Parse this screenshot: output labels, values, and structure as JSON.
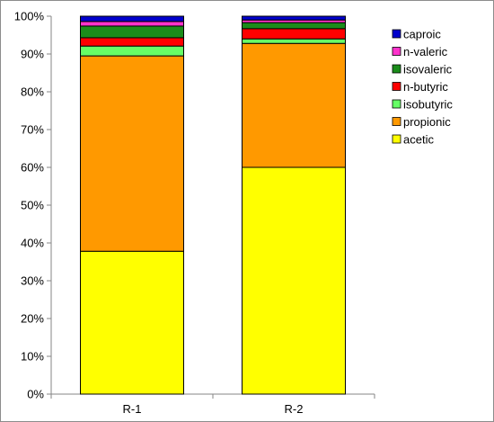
{
  "chart_data": {
    "type": "bar",
    "stacked": true,
    "percent": true,
    "categories": [
      "R-1",
      "R-2"
    ],
    "series": [
      {
        "name": "acetic",
        "color": "#ffff00",
        "values": [
          37.8,
          60.0
        ]
      },
      {
        "name": "propionic",
        "color": "#ff9900",
        "values": [
          51.7,
          32.8
        ]
      },
      {
        "name": "isobutyric",
        "color": "#66ff66",
        "values": [
          2.6,
          1.2
        ]
      },
      {
        "name": "n-butyric",
        "color": "#ff0000",
        "values": [
          2.2,
          2.7
        ]
      },
      {
        "name": "isovaleric",
        "color": "#1a8c1a",
        "values": [
          3.1,
          1.6
        ]
      },
      {
        "name": "n-valeric",
        "color": "#ff33cc",
        "values": [
          1.2,
          0.7
        ]
      },
      {
        "name": "caproic",
        "color": "#0000cc",
        "values": [
          1.4,
          1.0
        ]
      }
    ],
    "ylim": [
      0,
      100
    ],
    "yticks": [
      "0%",
      "10%",
      "20%",
      "30%",
      "40%",
      "50%",
      "60%",
      "70%",
      "80%",
      "90%",
      "100%"
    ],
    "ytick_values": [
      0,
      10,
      20,
      30,
      40,
      50,
      60,
      70,
      80,
      90,
      100
    ],
    "grid": false,
    "legend_position": "right",
    "legend_order": [
      "caproic",
      "n-valeric",
      "isovaleric",
      "n-butyric",
      "isobutyric",
      "propionic",
      "acetic"
    ]
  }
}
